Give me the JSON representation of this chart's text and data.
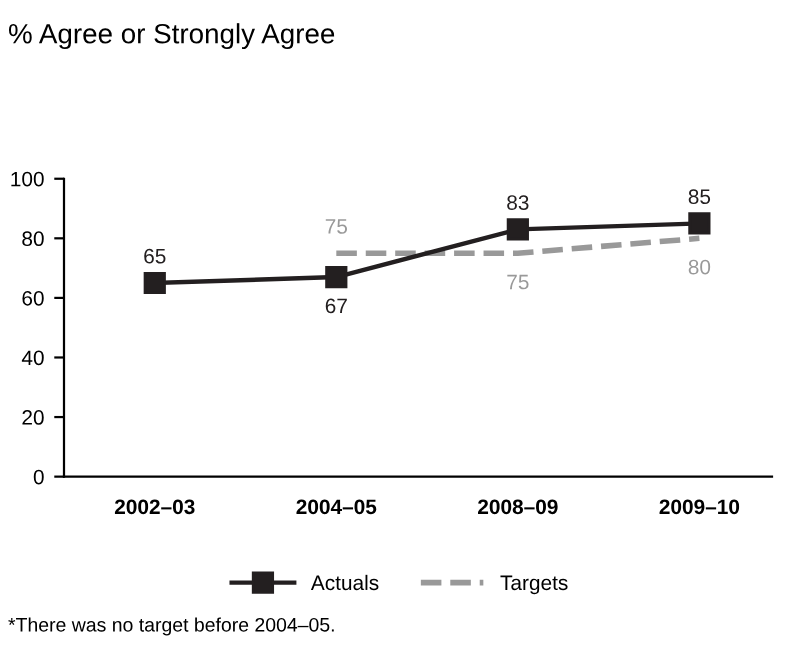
{
  "chart_data": {
    "type": "line",
    "title": "% Agree or Strongly Agree",
    "categories": [
      "2002–03",
      "2004–05",
      "2008–09",
      "2009–10"
    ],
    "series": [
      {
        "name": "Actuals",
        "color": "#231f20",
        "values": [
          65,
          67,
          83,
          85
        ],
        "marker": "square",
        "line_style": "solid"
      },
      {
        "name": "Targets",
        "color": "#999999",
        "values": [
          null,
          75,
          75,
          80
        ],
        "marker": "none",
        "line_style": "dashed"
      }
    ],
    "ylim": [
      0,
      100
    ],
    "yticks": [
      0,
      20,
      40,
      60,
      80,
      100
    ],
    "grid": false,
    "legend": "bottom",
    "data_labels": true,
    "annotations": [
      "*There was no target before 2004–05."
    ]
  }
}
